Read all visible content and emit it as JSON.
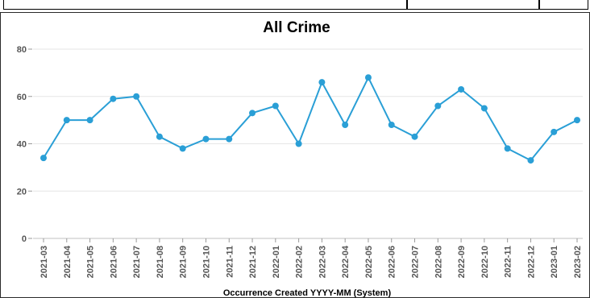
{
  "chart_data": {
    "type": "line",
    "title": "All Crime",
    "xlabel": "Occurrence Created YYYY-MM (System)",
    "ylabel": "",
    "ylim": [
      0,
      80
    ],
    "yticks": [
      0,
      20,
      40,
      60,
      80
    ],
    "grid": true,
    "color": "#2a9fd6",
    "categories": [
      "2021-03",
      "2021-04",
      "2021-05",
      "2021-06",
      "2021-07",
      "2021-08",
      "2021-09",
      "2021-10",
      "2021-11",
      "2021-12",
      "2022-01",
      "2022-02",
      "2022-03",
      "2022-04",
      "2022-05",
      "2022-06",
      "2022-07",
      "2022-08",
      "2022-09",
      "2022-10",
      "2022-11",
      "2022-12",
      "2023-01",
      "2023-02"
    ],
    "series": [
      {
        "values": [
          34,
          50,
          50,
          59,
          60,
          43,
          38,
          42,
          42,
          53,
          56,
          40,
          66,
          48,
          68,
          48,
          43,
          56,
          63,
          55,
          38,
          33,
          45,
          50
        ]
      }
    ]
  }
}
